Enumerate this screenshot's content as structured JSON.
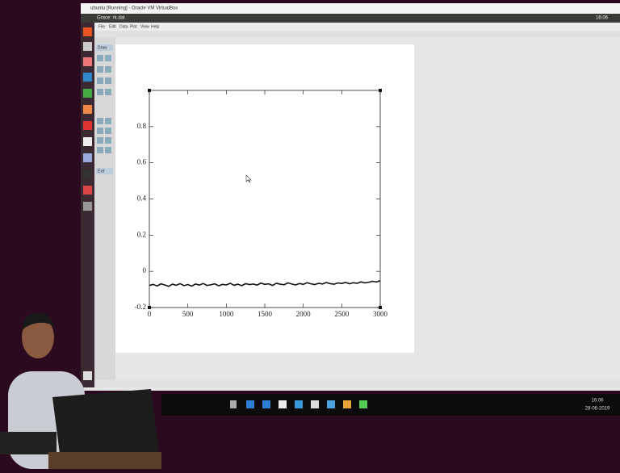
{
  "window_title": "ubuntu [Running] - Oracle VM VirtualBox",
  "app_title": "Grace: rk.dat",
  "menu": [
    "File",
    "Edit",
    "Data",
    "Plot",
    "View",
    "Help"
  ],
  "side_panel": [
    "Draw",
    "Exit"
  ],
  "taskbar": {
    "time": "16:06",
    "date": "28-06-2019"
  },
  "chart_data": {
    "type": "line",
    "x": [
      0,
      50,
      100,
      150,
      200,
      250,
      300,
      350,
      400,
      450,
      500,
      550,
      600,
      650,
      700,
      750,
      800,
      850,
      900,
      950,
      1000,
      1050,
      1100,
      1150,
      1200,
      1250,
      1300,
      1350,
      1400,
      1450,
      1500,
      1550,
      1600,
      1650,
      1700,
      1750,
      1800,
      1850,
      1900,
      1950,
      2000,
      2050,
      2100,
      2150,
      2200,
      2250,
      2300,
      2350,
      2400,
      2450,
      2500,
      2550,
      2600,
      2650,
      2700,
      2750,
      2800,
      2850,
      2900,
      2950,
      3000
    ],
    "series": [
      {
        "color": "#111111",
        "values": [
          -0.078,
          -0.072,
          -0.081,
          -0.069,
          -0.075,
          -0.083,
          -0.071,
          -0.077,
          -0.068,
          -0.079,
          -0.073,
          -0.082,
          -0.07,
          -0.076,
          -0.067,
          -0.078,
          -0.074,
          -0.069,
          -0.08,
          -0.072,
          -0.075,
          -0.066,
          -0.077,
          -0.071,
          -0.079,
          -0.068,
          -0.073,
          -0.07,
          -0.076,
          -0.065,
          -0.072,
          -0.069,
          -0.078,
          -0.066,
          -0.071,
          -0.074,
          -0.064,
          -0.07,
          -0.075,
          -0.067,
          -0.072,
          -0.063,
          -0.069,
          -0.073,
          -0.066,
          -0.07,
          -0.062,
          -0.068,
          -0.071,
          -0.064,
          -0.067,
          -0.061,
          -0.069,
          -0.063,
          -0.066,
          -0.058,
          -0.064,
          -0.06,
          -0.055,
          -0.059,
          -0.052
        ]
      }
    ],
    "xlim": [
      0,
      3000
    ],
    "xticks": [
      0,
      500,
      1000,
      1500,
      2000,
      2500,
      3000
    ],
    "ylim": [
      -0.2,
      1
    ],
    "yticks": [
      -0.2,
      0,
      0.2,
      0.4,
      0.6,
      0.8
    ]
  }
}
